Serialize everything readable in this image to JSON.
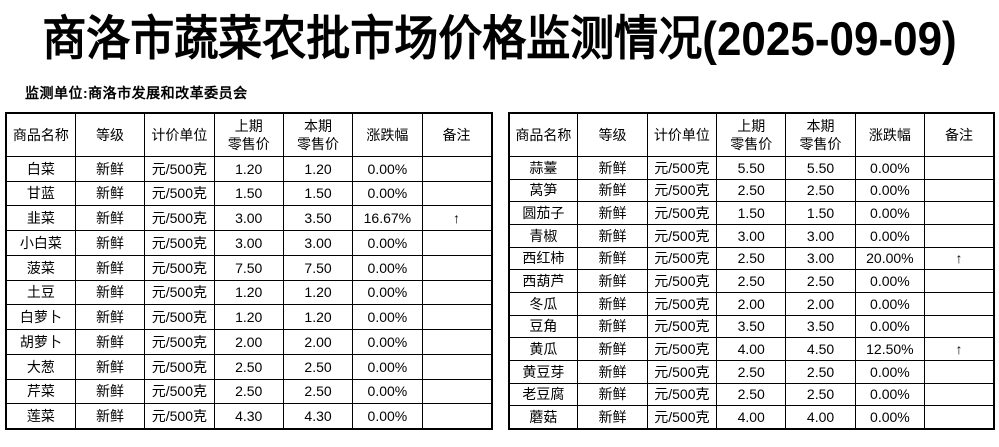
{
  "title": "商洛市蔬菜农批市场价格监测情况(2025-09-09)",
  "subtitle": "监测单位:商洛市发展和改革委员会",
  "colors": {
    "text": "#000000",
    "border": "#000000",
    "background": "#ffffff"
  },
  "up_arrow_glyph": "↑",
  "table_headers": [
    "商品名称",
    "等级",
    "计价单位",
    "上期\n零售价",
    "本期\n零售价",
    "涨跌幅",
    "备注"
  ],
  "tables": [
    {
      "id": "left",
      "rows": [
        [
          "白菜",
          "新鲜",
          "元/500克",
          "1.20",
          "1.20",
          "0.00%",
          ""
        ],
        [
          "甘蓝",
          "新鲜",
          "元/500克",
          "1.50",
          "1.50",
          "0.00%",
          ""
        ],
        [
          "韭菜",
          "新鲜",
          "元/500克",
          "3.00",
          "3.50",
          "16.67%",
          "↑"
        ],
        [
          "小白菜",
          "新鲜",
          "元/500克",
          "3.00",
          "3.00",
          "0.00%",
          ""
        ],
        [
          "菠菜",
          "新鲜",
          "元/500克",
          "7.50",
          "7.50",
          "0.00%",
          ""
        ],
        [
          "土豆",
          "新鲜",
          "元/500克",
          "1.20",
          "1.20",
          "0.00%",
          ""
        ],
        [
          "白萝卜",
          "新鲜",
          "元/500克",
          "1.20",
          "1.20",
          "0.00%",
          ""
        ],
        [
          "胡萝卜",
          "新鲜",
          "元/500克",
          "2.00",
          "2.00",
          "0.00%",
          ""
        ],
        [
          "大葱",
          "新鲜",
          "元/500克",
          "2.50",
          "2.50",
          "0.00%",
          ""
        ],
        [
          "芹菜",
          "新鲜",
          "元/500克",
          "2.50",
          "2.50",
          "0.00%",
          ""
        ],
        [
          "莲菜",
          "新鲜",
          "元/500克",
          "4.30",
          "4.30",
          "0.00%",
          ""
        ]
      ]
    },
    {
      "id": "right",
      "rows": [
        [
          "蒜薹",
          "新鲜",
          "元/500克",
          "5.50",
          "5.50",
          "0.00%",
          ""
        ],
        [
          "莴笋",
          "新鲜",
          "元/500克",
          "2.50",
          "2.50",
          "0.00%",
          ""
        ],
        [
          "圆茄子",
          "新鲜",
          "元/500克",
          "1.50",
          "1.50",
          "0.00%",
          ""
        ],
        [
          "青椒",
          "新鲜",
          "元/500克",
          "3.00",
          "3.00",
          "0.00%",
          ""
        ],
        [
          "西红柿",
          "新鲜",
          "元/500克",
          "2.50",
          "3.00",
          "20.00%",
          "↑"
        ],
        [
          "西葫芦",
          "新鲜",
          "元/500克",
          "2.50",
          "2.50",
          "0.00%",
          ""
        ],
        [
          "冬瓜",
          "新鲜",
          "元/500克",
          "2.00",
          "2.00",
          "0.00%",
          ""
        ],
        [
          "豆角",
          "新鲜",
          "元/500克",
          "3.50",
          "3.50",
          "0.00%",
          ""
        ],
        [
          "黄瓜",
          "新鲜",
          "元/500克",
          "4.00",
          "4.50",
          "12.50%",
          "↑"
        ],
        [
          "黄豆芽",
          "新鲜",
          "元/500克",
          "2.50",
          "2.50",
          "0.00%",
          ""
        ],
        [
          "老豆腐",
          "新鲜",
          "元/500克",
          "2.50",
          "2.50",
          "0.00%",
          ""
        ],
        [
          "蘑菇",
          "新鲜",
          "元/500克",
          "4.00",
          "4.00",
          "0.00%",
          ""
        ]
      ]
    }
  ]
}
